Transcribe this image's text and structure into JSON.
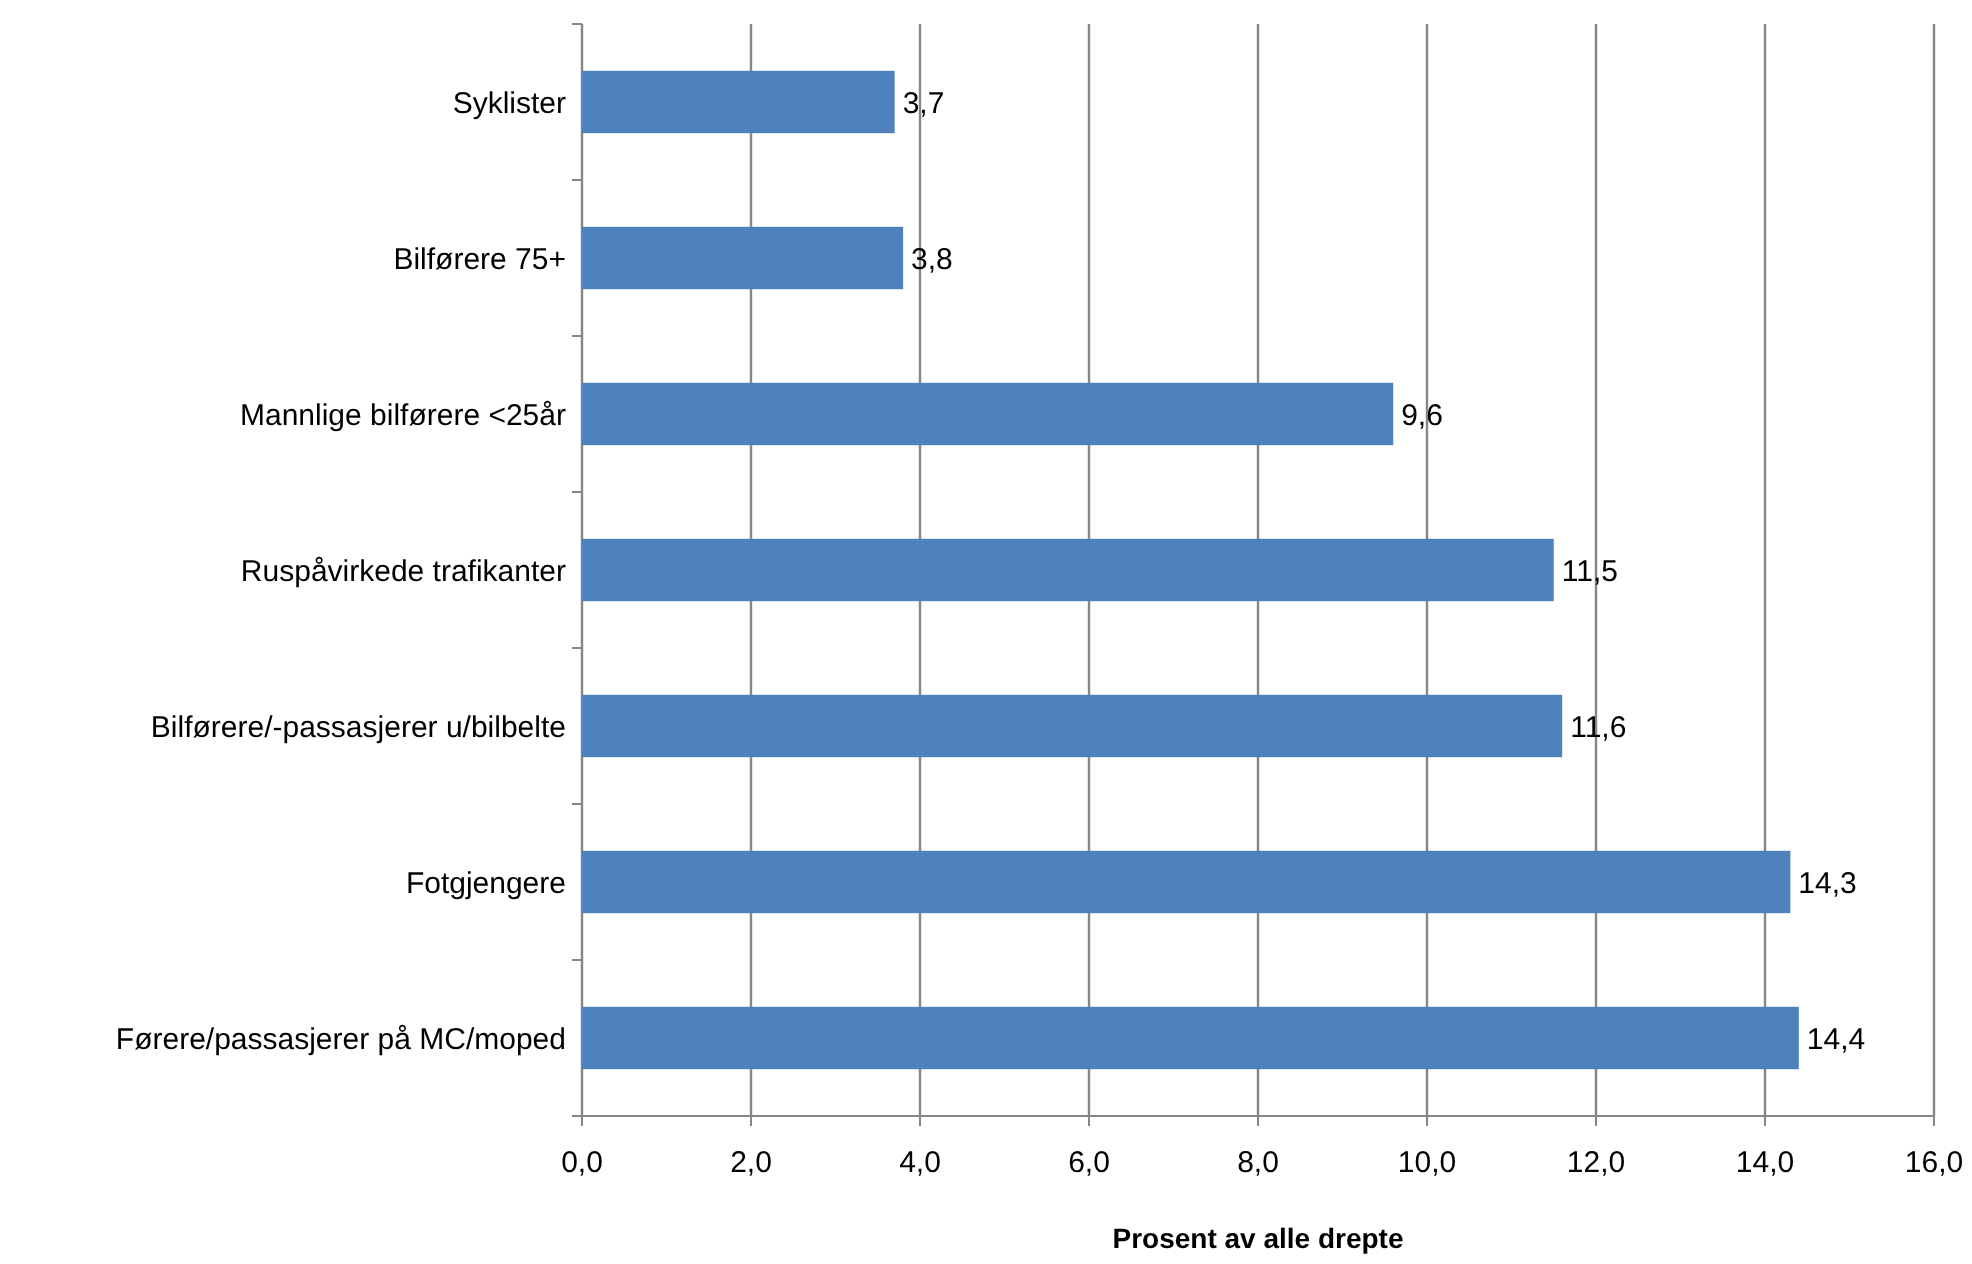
{
  "chart_data": {
    "type": "bar",
    "orientation": "horizontal",
    "xlabel": "Prosent av alle drepte",
    "categories": [
      "Syklister",
      "Bilførere 75+",
      "Mannlige bilførere <25år",
      "Ruspåvirkede trafikanter",
      "Bilførere/-passasjerer u/bilbelte",
      "Fotgjengere",
      "Førere/passasjerer på MC/moped"
    ],
    "values": [
      3.7,
      3.8,
      9.6,
      11.5,
      11.6,
      14.3,
      14.4
    ],
    "value_labels": [
      "3,7",
      "3,8",
      "9,6",
      "11,5",
      "11,6",
      "14,3",
      "14,4"
    ],
    "color": "#4f81bd",
    "xlim": [
      0,
      16
    ],
    "xticks": [
      {
        "value": 0,
        "label": "0,0"
      },
      {
        "value": 2,
        "label": "2,0"
      },
      {
        "value": 4,
        "label": "4,0"
      },
      {
        "value": 6,
        "label": "6,0"
      },
      {
        "value": 8,
        "label": "8,0"
      },
      {
        "value": 10,
        "label": "10,0"
      },
      {
        "value": 12,
        "label": "12,0"
      },
      {
        "value": 14,
        "label": "14,0"
      },
      {
        "value": 16,
        "label": "16,0"
      }
    ],
    "grid": "x"
  }
}
